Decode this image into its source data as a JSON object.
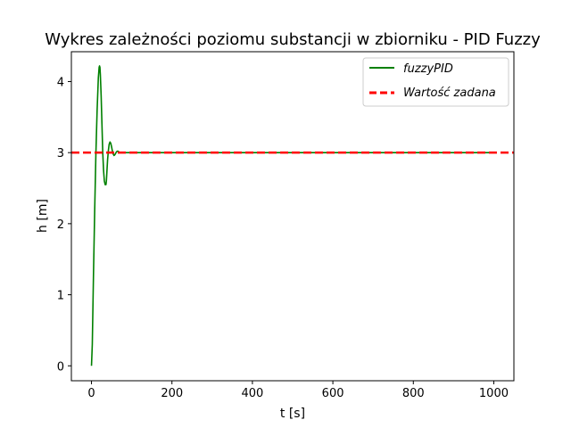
{
  "chart_data": {
    "type": "line",
    "title": "Wykres zależności poziomu substancji w zbiorniku - PID Fuzzy",
    "xlabel": "t [s]",
    "ylabel": "h [m]",
    "xlim": [
      -50,
      1050
    ],
    "ylim": [
      -0.21,
      4.42
    ],
    "xticks": [
      0,
      200,
      400,
      600,
      800,
      1000
    ],
    "xtick_labels": [
      "0",
      "200",
      "400",
      "600",
      "800",
      "1000"
    ],
    "yticks": [
      0,
      1,
      2,
      3,
      4
    ],
    "ytick_labels": [
      "0",
      "1",
      "2",
      "3",
      "4"
    ],
    "grid": false,
    "legend_position": "upper right",
    "series": [
      {
        "name": "fuzzyPID",
        "color": "#008000",
        "style": "solid",
        "x": [
          0,
          2,
          5,
          8,
          11,
          14,
          17,
          19,
          20,
          21,
          22,
          24,
          26,
          28,
          30,
          32,
          34,
          36,
          37,
          38,
          40,
          42,
          44,
          46,
          48,
          50,
          52,
          54,
          56,
          58,
          60,
          62,
          64,
          66,
          68,
          70,
          75,
          80,
          90,
          100,
          150,
          200,
          300,
          400,
          500,
          600,
          700,
          800,
          900,
          1000
        ],
        "y": [
          0,
          0.3,
          1.3,
          2.2,
          3.0,
          3.6,
          4.05,
          4.2,
          4.22,
          4.2,
          4.1,
          3.8,
          3.4,
          3.0,
          2.75,
          2.6,
          2.55,
          2.55,
          2.6,
          2.7,
          2.9,
          3.03,
          3.12,
          3.15,
          3.13,
          3.08,
          3.02,
          2.98,
          2.96,
          2.97,
          2.99,
          3.01,
          3.02,
          3.02,
          3.01,
          3.0,
          3.0,
          3.0,
          3.0,
          3.0,
          3.0,
          3.0,
          3.0,
          3.0,
          3.0,
          3.0,
          3.0,
          3.0,
          3.0,
          3.0
        ]
      },
      {
        "name": "Wartość zadana",
        "color": "#ff0000",
        "style": "dashed",
        "x": [
          -50,
          1050
        ],
        "y": [
          3,
          3
        ]
      }
    ]
  }
}
